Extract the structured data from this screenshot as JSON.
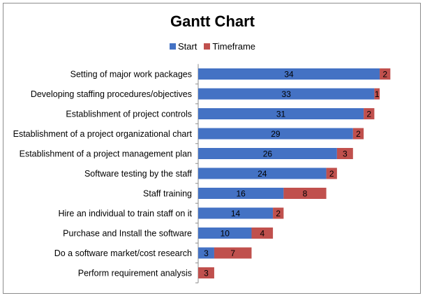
{
  "chart_data": {
    "type": "bar",
    "orientation": "horizontal",
    "stacked": true,
    "title": "Gantt Chart",
    "legend_position": "top",
    "grid": false,
    "xlim": [
      0,
      37
    ],
    "categories": [
      "Setting of major work packages",
      "Developing staffing procedures/objectives",
      "Establishment of project controls",
      "Establishment of a project organizational chart",
      "Establishment of a project management plan",
      "Software testing by the staff",
      "Staff training",
      "Hire an individual to train staff on it",
      "Purchase and Install the software",
      "Do a software market/cost research",
      "Perform requirement analysis"
    ],
    "series": [
      {
        "name": "Start",
        "color": "#4472c4",
        "values": [
          34,
          33,
          31,
          29,
          26,
          24,
          16,
          14,
          10,
          3,
          0
        ]
      },
      {
        "name": "Timeframe",
        "color": "#c0504d",
        "values": [
          2,
          1,
          2,
          2,
          3,
          2,
          8,
          2,
          4,
          7,
          3
        ]
      }
    ]
  }
}
